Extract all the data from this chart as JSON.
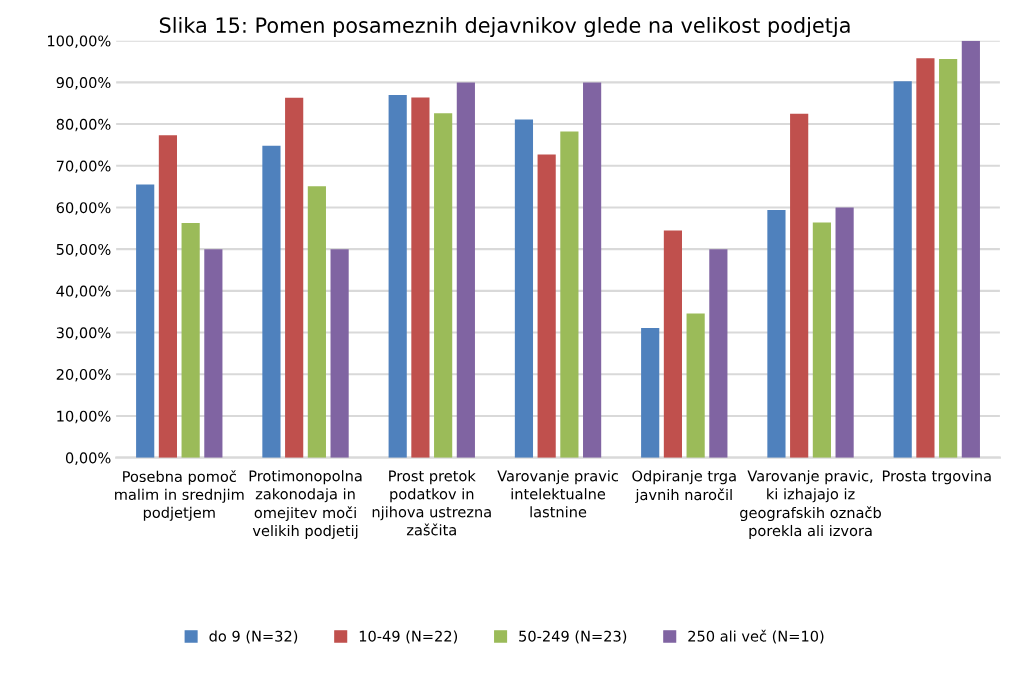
{
  "chart_data": {
    "type": "bar",
    "title": "Slika 15: Pomen posameznih dejavnikov glede na velikost podjetja",
    "categories": [
      "Posebna pomoč malim in srednjim podjetjem",
      "Protimonopolna zakonodaja in omejitev moči velikih podjetij",
      "Prost pretok podatkov in njihova ustrezna zaščita",
      "Varovanje pravic intelektualne lastnine",
      "Odpiranje trga javnih naročil",
      "Varovanje pravic, ki izhajajo iz geografskih označb porekla ali izvora",
      "Prosta trgovina"
    ],
    "series": [
      {
        "name": "do 9 (N=32)",
        "color": "#4f81bd",
        "values": [
          65.5,
          74.8,
          87.0,
          81.1,
          31.1,
          59.4,
          90.3
        ]
      },
      {
        "name": "10-49 (N=22)",
        "color": "#c0504d",
        "values": [
          77.3,
          86.3,
          86.4,
          72.7,
          54.5,
          82.5,
          95.8
        ]
      },
      {
        "name": "50-249 (N=23)",
        "color": "#9bbb59",
        "values": [
          56.3,
          65.1,
          82.6,
          78.2,
          34.6,
          56.4,
          95.6
        ]
      },
      {
        "name": "250 ali več (N=10)",
        "color": "#8064a2",
        "values": [
          50,
          50,
          90,
          90,
          50,
          60,
          100
        ]
      }
    ],
    "ylim": [
      0,
      100
    ],
    "yticks": [
      {
        "value": 0,
        "label": "0,00%"
      },
      {
        "value": 10,
        "label": "10,00%"
      },
      {
        "value": 20,
        "label": "20,00%"
      },
      {
        "value": 30,
        "label": "30,00%"
      },
      {
        "value": 40,
        "label": "40,00%"
      },
      {
        "value": 50,
        "label": "50,00%"
      },
      {
        "value": 60,
        "label": "60,00%"
      },
      {
        "value": 70,
        "label": "70,00%"
      },
      {
        "value": 80,
        "label": "80,00%"
      },
      {
        "value": 90,
        "label": "90,00%"
      },
      {
        "value": 100,
        "label": "100,00%"
      }
    ],
    "grid": "y",
    "legend": "bottom"
  }
}
